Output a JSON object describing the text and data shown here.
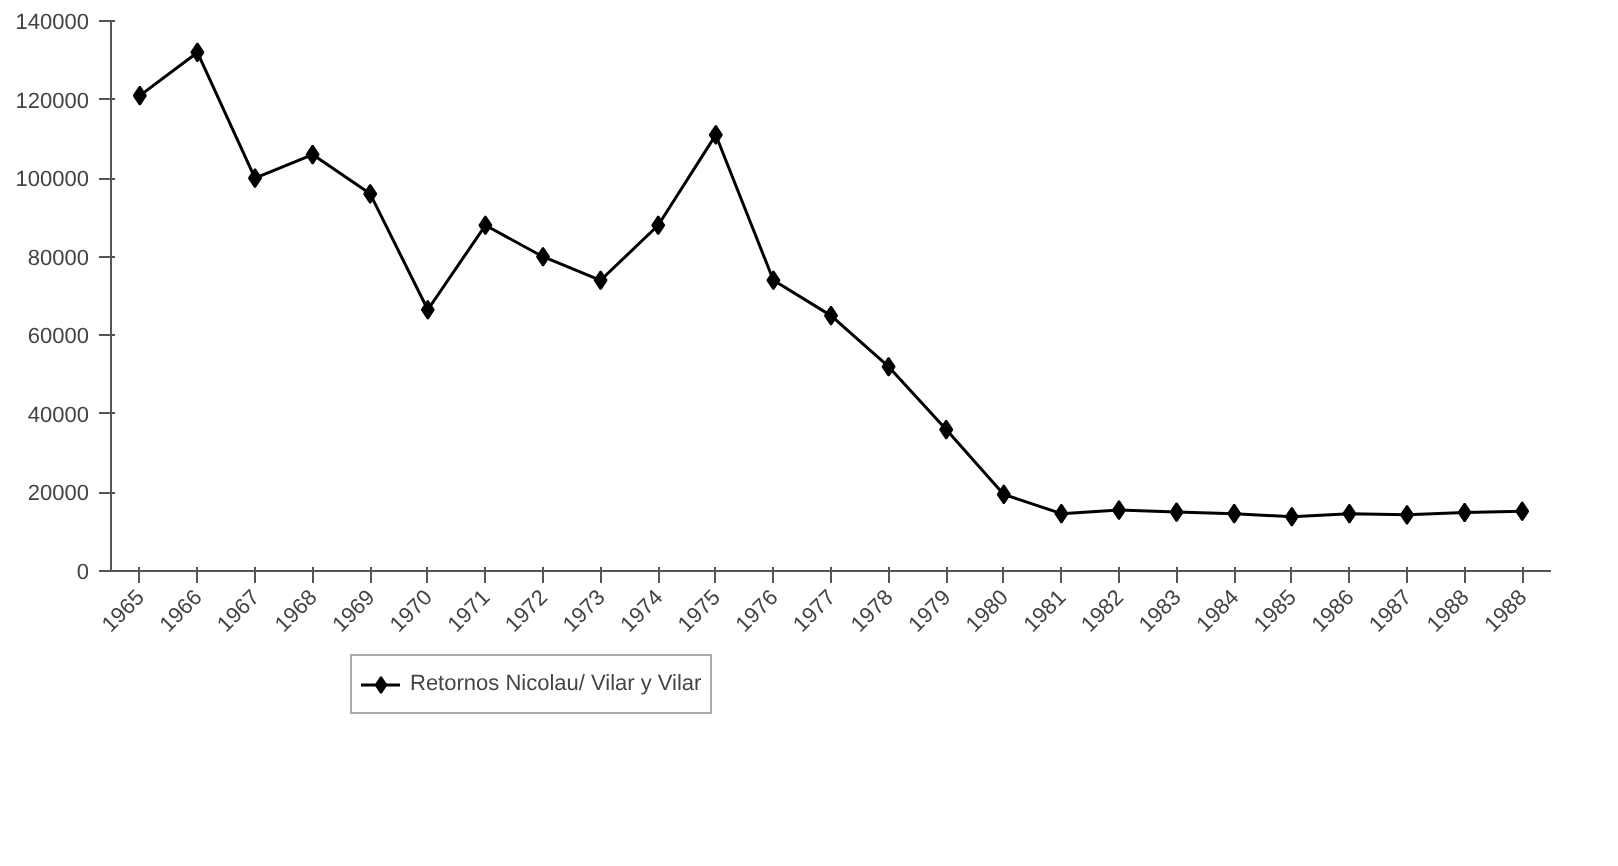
{
  "chart_data": {
    "type": "line",
    "categories": [
      "1965",
      "1966",
      "1967",
      "1968",
      "1969",
      "1970",
      "1971",
      "1972",
      "1973",
      "1974",
      "1975",
      "1976",
      "1977",
      "1978",
      "1979",
      "1980",
      "1981",
      "1982",
      "1983",
      "1984",
      "1985",
      "1986",
      "1987",
      "1988",
      "1988"
    ],
    "series": [
      {
        "name": "Retornos Nicolau/ Vilar y Vilar",
        "color": "#000000",
        "values": [
          121000,
          132000,
          100000,
          106000,
          96000,
          66500,
          88000,
          80000,
          74000,
          88000,
          111000,
          74000,
          65000,
          52000,
          36000,
          19500,
          14600,
          15500,
          15000,
          14600,
          13800,
          14600,
          14300,
          14900,
          15200
        ]
      }
    ],
    "ylim": [
      0,
      140000
    ],
    "yticks": [
      0,
      20000,
      40000,
      60000,
      80000,
      100000,
      120000,
      140000
    ],
    "marker": "diamond",
    "line_style": "solid",
    "legend": "bottom",
    "grid": false
  }
}
